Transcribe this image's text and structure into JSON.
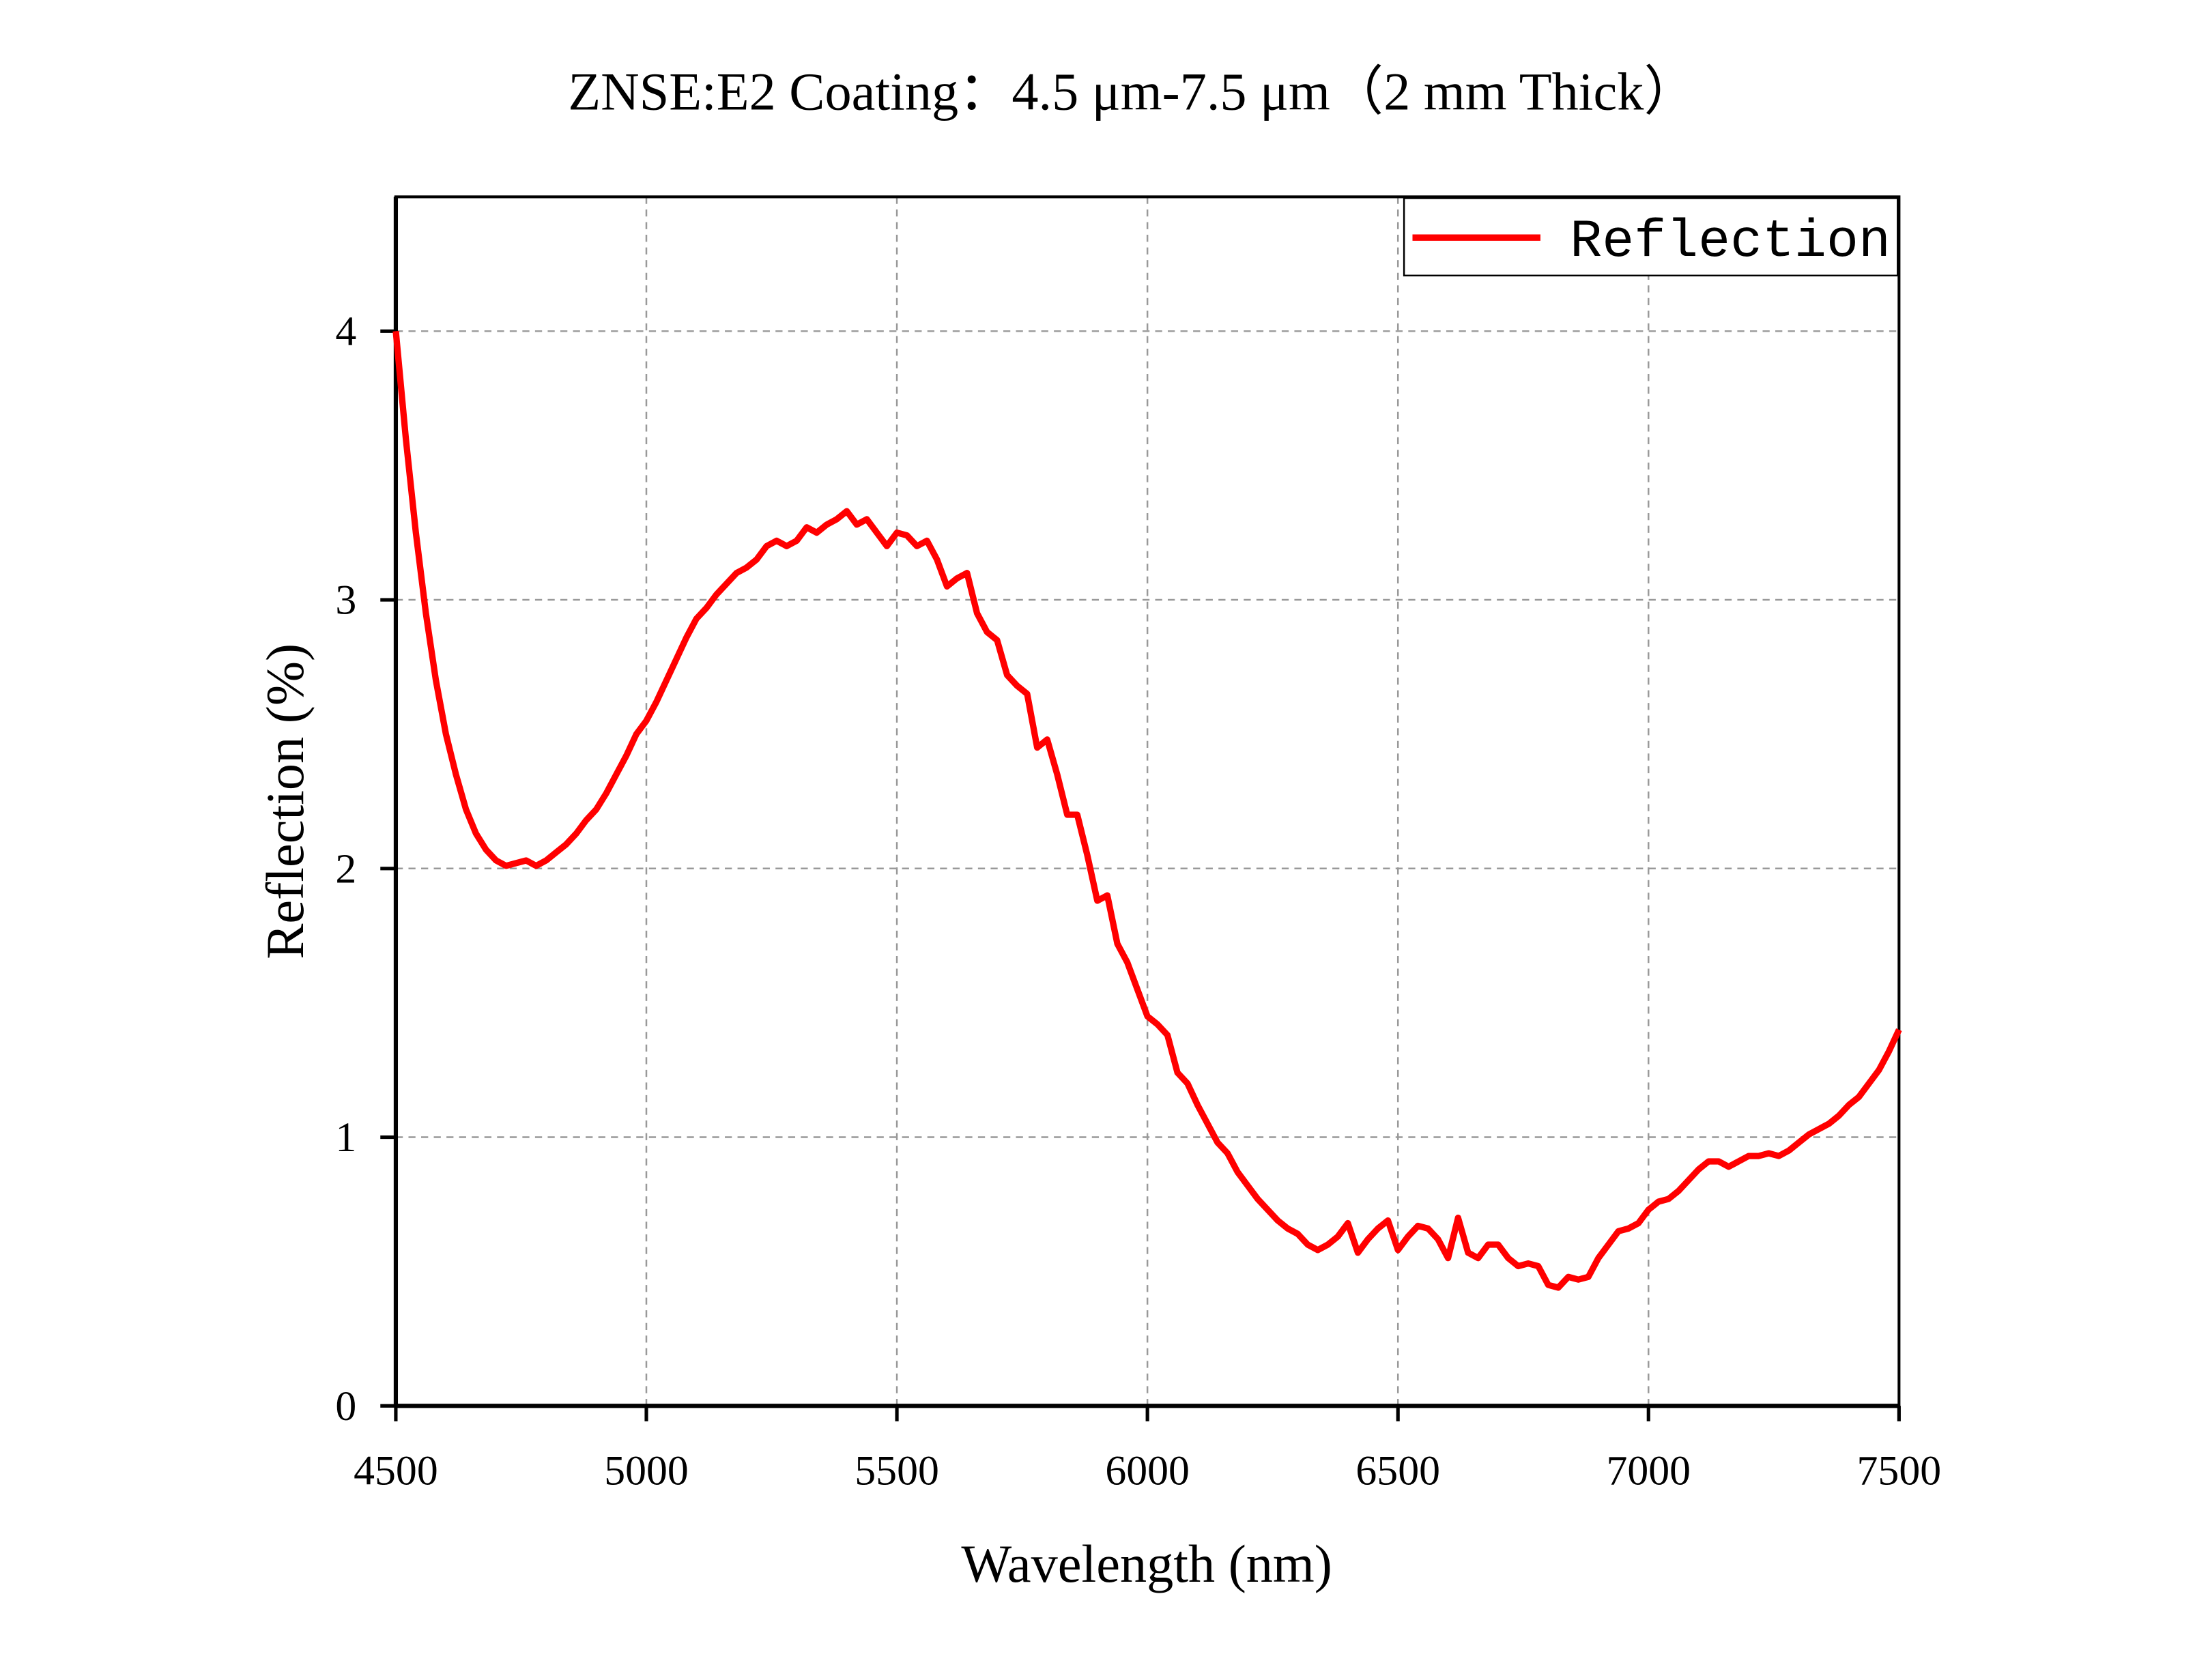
{
  "chart_data": {
    "type": "line",
    "title": "ZNSE:E2 Coating：4.5 μm-7.5 μm（2 mm Thick）",
    "x_label": "Wavelength (nm)",
    "y_label": "Reflection (%)",
    "xlim": [
      4500,
      7500
    ],
    "xticks": [
      4500,
      5000,
      5500,
      6000,
      6500,
      7000,
      7500
    ],
    "ylim": [
      0,
      4.5
    ],
    "yticks": [
      0,
      1,
      2,
      3,
      4
    ],
    "grid": true,
    "legend": "upper right",
    "x": [
      4500,
      4520,
      4540,
      4560,
      4580,
      4600,
      4620,
      4640,
      4660,
      4680,
      4700,
      4720,
      4740,
      4760,
      4780,
      4800,
      4820,
      4840,
      4860,
      4880,
      4900,
      4920,
      4940,
      4960,
      4980,
      5000,
      5020,
      5040,
      5060,
      5080,
      5100,
      5120,
      5140,
      5160,
      5180,
      5200,
      5220,
      5240,
      5260,
      5280,
      5300,
      5320,
      5340,
      5360,
      5380,
      5400,
      5420,
      5440,
      5460,
      5480,
      5500,
      5520,
      5540,
      5560,
      5580,
      5600,
      5620,
      5640,
      5660,
      5680,
      5700,
      5720,
      5740,
      5760,
      5780,
      5800,
      5820,
      5840,
      5860,
      5880,
      5900,
      5920,
      5940,
      5960,
      5980,
      6000,
      6020,
      6040,
      6060,
      6080,
      6100,
      6120,
      6140,
      6160,
      6180,
      6200,
      6220,
      6240,
      6260,
      6280,
      6300,
      6320,
      6340,
      6360,
      6380,
      6400,
      6420,
      6440,
      6460,
      6480,
      6500,
      6520,
      6540,
      6560,
      6580,
      6600,
      6620,
      6640,
      6660,
      6680,
      6700,
      6720,
      6740,
      6760,
      6780,
      6800,
      6820,
      6840,
      6860,
      6880,
      6900,
      6920,
      6940,
      6960,
      6980,
      7000,
      7020,
      7040,
      7060,
      7080,
      7100,
      7120,
      7140,
      7160,
      7180,
      7200,
      7220,
      7240,
      7260,
      7280,
      7300,
      7320,
      7340,
      7360,
      7380,
      7400,
      7420,
      7440,
      7460,
      7480,
      7500
    ],
    "series": [
      {
        "name": "Reflection",
        "color": "#ff0000",
        "values": [
          4.0,
          3.6,
          3.25,
          2.95,
          2.7,
          2.5,
          2.35,
          2.22,
          2.13,
          2.07,
          2.03,
          2.01,
          2.02,
          2.03,
          2.01,
          2.03,
          2.06,
          2.09,
          2.13,
          2.18,
          2.22,
          2.28,
          2.35,
          2.42,
          2.5,
          2.55,
          2.62,
          2.7,
          2.78,
          2.86,
          2.93,
          2.97,
          3.02,
          3.06,
          3.1,
          3.12,
          3.15,
          3.2,
          3.22,
          3.2,
          3.22,
          3.27,
          3.25,
          3.28,
          3.3,
          3.33,
          3.28,
          3.3,
          3.25,
          3.2,
          3.25,
          3.24,
          3.2,
          3.22,
          3.15,
          3.05,
          3.08,
          3.1,
          2.95,
          2.88,
          2.85,
          2.72,
          2.68,
          2.65,
          2.45,
          2.48,
          2.35,
          2.2,
          2.2,
          2.05,
          1.88,
          1.9,
          1.72,
          1.65,
          1.55,
          1.45,
          1.42,
          1.38,
          1.24,
          1.2,
          1.12,
          1.05,
          0.98,
          0.94,
          0.87,
          0.82,
          0.77,
          0.73,
          0.69,
          0.66,
          0.64,
          0.6,
          0.58,
          0.6,
          0.63,
          0.68,
          0.57,
          0.62,
          0.66,
          0.69,
          0.58,
          0.63,
          0.67,
          0.66,
          0.62,
          0.55,
          0.7,
          0.57,
          0.55,
          0.6,
          0.6,
          0.55,
          0.52,
          0.53,
          0.52,
          0.45,
          0.44,
          0.48,
          0.47,
          0.48,
          0.55,
          0.6,
          0.65,
          0.66,
          0.68,
          0.73,
          0.76,
          0.77,
          0.8,
          0.84,
          0.88,
          0.91,
          0.91,
          0.89,
          0.91,
          0.93,
          0.93,
          0.94,
          0.93,
          0.95,
          0.98,
          1.01,
          1.03,
          1.05,
          1.08,
          1.12,
          1.15,
          1.2,
          1.25,
          1.32,
          1.4
        ]
      }
    ]
  }
}
